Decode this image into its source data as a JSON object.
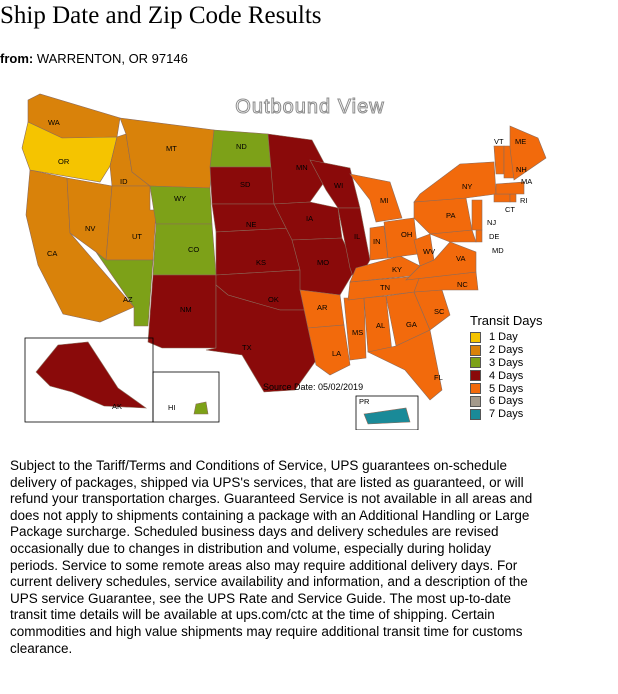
{
  "page_title": "Ship Date and Zip Code Results",
  "origin": {
    "label": "from:",
    "value": "WARRENTON, OR 97146"
  },
  "map": {
    "title": "Outbound View",
    "source_date": "Source Date: 05/02/2019",
    "legend_title": "Transit Days",
    "legend": [
      {
        "label": "1 Day",
        "color": "#f5c400"
      },
      {
        "label": "2 Days",
        "color": "#d9820a"
      },
      {
        "label": "3 Days",
        "color": "#7da118"
      },
      {
        "label": "4 Days",
        "color": "#8a0a0a"
      },
      {
        "label": "5 Days",
        "color": "#f26a0c"
      },
      {
        "label": "6 Days",
        "color": "#a49a8c"
      },
      {
        "label": "7 Days",
        "color": "#1a8a98"
      }
    ],
    "states": [
      {
        "abbr": "WA",
        "days": 2
      },
      {
        "abbr": "OR",
        "days": 1
      },
      {
        "abbr": "CA",
        "days": 2
      },
      {
        "abbr": "NV",
        "days": 2
      },
      {
        "abbr": "ID",
        "days": 2
      },
      {
        "abbr": "MT",
        "days": 2
      },
      {
        "abbr": "UT",
        "days": 2
      },
      {
        "abbr": "AZ",
        "days": 3
      },
      {
        "abbr": "WY",
        "days": 3
      },
      {
        "abbr": "CO",
        "days": 3
      },
      {
        "abbr": "ND",
        "days": 3
      },
      {
        "abbr": "NM",
        "days": 4
      },
      {
        "abbr": "SD",
        "days": 4
      },
      {
        "abbr": "NE",
        "days": 4
      },
      {
        "abbr": "KS",
        "days": 4
      },
      {
        "abbr": "OK",
        "days": 4
      },
      {
        "abbr": "TX",
        "days": 4
      },
      {
        "abbr": "MN",
        "days": 4
      },
      {
        "abbr": "IA",
        "days": 4
      },
      {
        "abbr": "MO",
        "days": 4
      },
      {
        "abbr": "WI",
        "days": 4
      },
      {
        "abbr": "IL",
        "days": 4
      },
      {
        "abbr": "AK",
        "days": 4
      },
      {
        "abbr": "HI",
        "days": 3
      },
      {
        "abbr": "AR",
        "days": 5
      },
      {
        "abbr": "LA",
        "days": 5
      },
      {
        "abbr": "MS",
        "days": 5
      },
      {
        "abbr": "AL",
        "days": 5
      },
      {
        "abbr": "GA",
        "days": 5
      },
      {
        "abbr": "FL",
        "days": 5
      },
      {
        "abbr": "SC",
        "days": 5
      },
      {
        "abbr": "NC",
        "days": 5
      },
      {
        "abbr": "TN",
        "days": 5
      },
      {
        "abbr": "KY",
        "days": 5
      },
      {
        "abbr": "IN",
        "days": 5
      },
      {
        "abbr": "OH",
        "days": 5
      },
      {
        "abbr": "MI",
        "days": 5
      },
      {
        "abbr": "WV",
        "days": 5
      },
      {
        "abbr": "VA",
        "days": 5
      },
      {
        "abbr": "MD",
        "days": 5
      },
      {
        "abbr": "DE",
        "days": 5
      },
      {
        "abbr": "PA",
        "days": 5
      },
      {
        "abbr": "NJ",
        "days": 5
      },
      {
        "abbr": "NY",
        "days": 5
      },
      {
        "abbr": "CT",
        "days": 5
      },
      {
        "abbr": "RI",
        "days": 5
      },
      {
        "abbr": "MA",
        "days": 5
      },
      {
        "abbr": "VT",
        "days": 5
      },
      {
        "abbr": "NH",
        "days": 5
      },
      {
        "abbr": "ME",
        "days": 5
      },
      {
        "abbr": "PR",
        "days": 7
      }
    ]
  },
  "terms": "Subject to the Tariff/Terms and Conditions of Service, UPS guarantees on-schedule delivery of packages, shipped via UPS's services, that are listed as guaranteed, or will refund your transportation charges. Guaranteed Service is not available in all areas and does not apply to shipments containing a package with an Additional Handling or Large Package surcharge. Scheduled business days and delivery schedules are revised occasionally due to changes in distribution and volume, especially during holiday periods. Service to some remote areas also may require additional delivery days. For current delivery schedules, service availability and information, and a description of the UPS service Guarantee, see the UPS Rate and Service Guide. The most up-to-date transit time details will be available at ups.com/ctc at the time of shipping. Certain commodities and high value shipments may require additional transit time for customs clearance."
}
